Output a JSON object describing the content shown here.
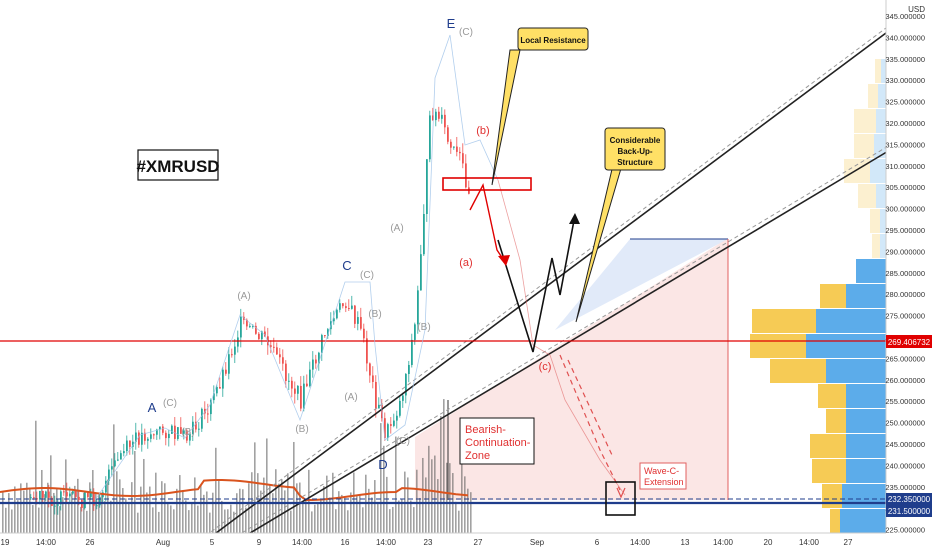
{
  "chart_data": {
    "type": "candlestick",
    "symbol_label": "#XMRUSD",
    "currency": "USD",
    "y_ticks": [
      "345.000000",
      "340.000000",
      "335.000000",
      "330.000000",
      "325.000000",
      "320.000000",
      "315.000000",
      "310.000000",
      "305.000000",
      "300.000000",
      "295.000000",
      "290.000000",
      "285.000000",
      "280.000000",
      "275.000000",
      "270.000000",
      "265.000000",
      "260.000000",
      "255.000000",
      "250.000000",
      "245.000000",
      "240.000000",
      "235.000000",
      "230.000000",
      "225.000000"
    ],
    "x_ticks": [
      "19",
      "14:00",
      "26",
      "Aug",
      "5",
      "9",
      "14:00",
      "16",
      "14:00",
      "23",
      "27",
      "Sep",
      "6",
      "14:00",
      "13",
      "14:00",
      "20",
      "14:00",
      "27"
    ],
    "price_lines": [
      {
        "label": "269.406732",
        "value": 269.406732,
        "color": "#e00000"
      },
      {
        "label": "232.350000",
        "value": 232.35,
        "color": "#1f3d8c"
      },
      {
        "label": "231.500000",
        "value": 231.5,
        "color": "#1f3d8c"
      }
    ],
    "wave_labels": {
      "A": "A",
      "C": "C",
      "D": "D",
      "E": "E",
      "sub_a": "(A)",
      "sub_b": "(B)",
      "sub_c": "(C)",
      "red_a": "(a)",
      "red_b": "(b)",
      "red_c": "(c)"
    },
    "annotations": {
      "local_resistance": "Local Resistance",
      "considerable_line1": "Considerable",
      "considerable_line2": "Back-Up-",
      "considerable_line3": "Structure",
      "bearish_line1": "Bearish-",
      "bearish_line2": "Continuation-",
      "bearish_line3": "Zone",
      "wave_c_line1": "Wave-C-",
      "wave_c_line2": "Extension"
    },
    "colors": {
      "up": "#26a69a",
      "down": "#ef5350",
      "resistance": "#e00000",
      "support": "#1f3d8c",
      "vp_up": "#4aa3e8",
      "vp_down": "#f5c542",
      "callout": "#ffe066"
    }
  }
}
